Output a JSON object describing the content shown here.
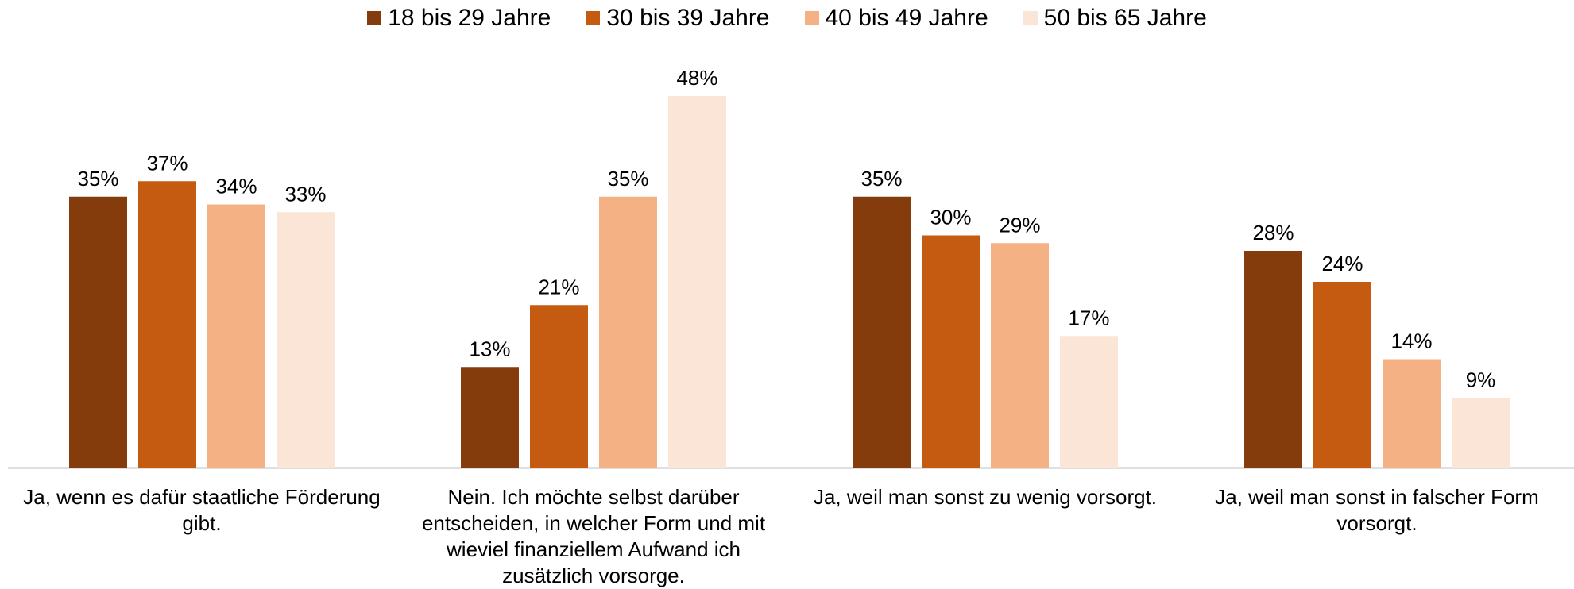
{
  "chart_data": {
    "type": "bar",
    "categories": [
      "Ja, wenn es dafür staatliche Förderung gibt.",
      "Nein. Ich möchte selbst darüber entscheiden, in welcher Form und mit wieviel finanziellem Aufwand ich zusätzlich vorsorge.",
      "Ja, weil man sonst zu wenig vorsorgt.",
      "Ja, weil man sonst in falscher Form vorsorgt."
    ],
    "series": [
      {
        "name": "18 bis 29 Jahre",
        "color": "#843c0c",
        "values": [
          35,
          13,
          35,
          28
        ],
        "value_labels": [
          "35%",
          "13%",
          "35%",
          "28%"
        ]
      },
      {
        "name": "30 bis 39 Jahre",
        "color": "#c55a11",
        "values": [
          37,
          21,
          30,
          24
        ],
        "value_labels": [
          "37%",
          "21%",
          "30%",
          "24%"
        ]
      },
      {
        "name": "40 bis 49 Jahre",
        "color": "#f4b183",
        "values": [
          34,
          35,
          29,
          14
        ],
        "value_labels": [
          "34%",
          "35%",
          "29%",
          "14%"
        ]
      },
      {
        "name": "50 bis 65 Jahre",
        "color": "#fbe5d6",
        "values": [
          33,
          48,
          17,
          9
        ],
        "value_labels": [
          "33%",
          "48%",
          "17%",
          "9%"
        ]
      }
    ],
    "legend": "top"
  }
}
